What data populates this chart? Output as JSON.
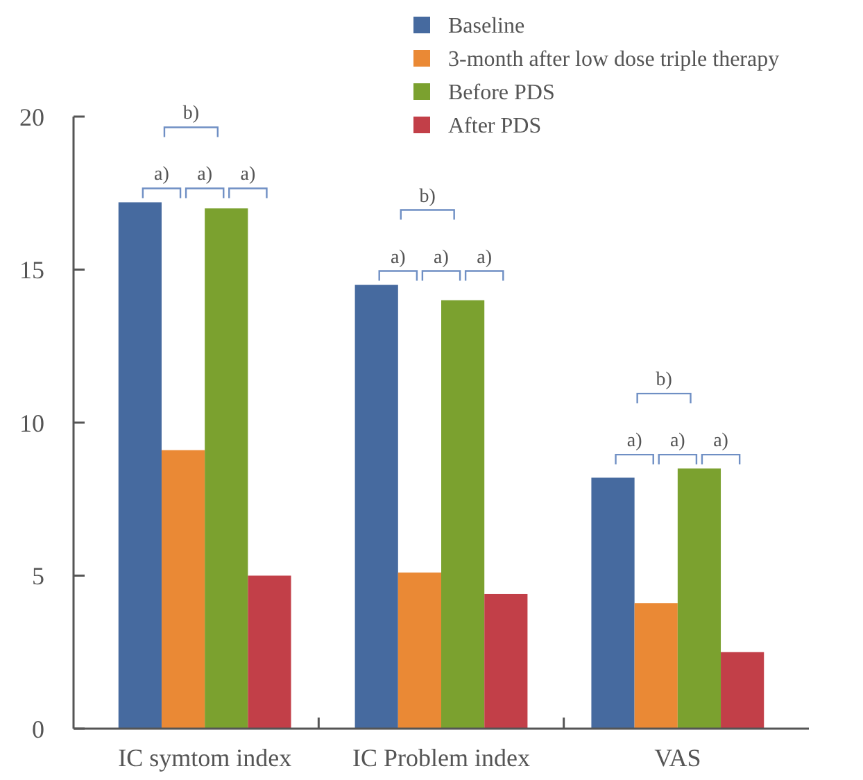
{
  "chart_data": {
    "type": "bar",
    "categories": [
      "IC symtom index",
      "IC Problem index",
      "VAS"
    ],
    "series": [
      {
        "name": "Baseline",
        "color": "#466a9f",
        "values": [
          17.2,
          14.5,
          8.2
        ]
      },
      {
        "name": "3-month after low dose triple therapy",
        "color": "#ea8935",
        "values": [
          9.1,
          5.1,
          4.1
        ]
      },
      {
        "name": "Before PDS",
        "color": "#7ba12f",
        "values": [
          17.0,
          14.0,
          8.5
        ]
      },
      {
        "name": "After PDS",
        "color": "#c23f48",
        "values": [
          5.0,
          4.4,
          2.5
        ]
      }
    ],
    "ylim": [
      0,
      20
    ],
    "yticks": [
      0,
      5,
      10,
      15,
      20
    ],
    "grid": false,
    "legend": "top right",
    "annotations": [
      "b)",
      "a)",
      "a)",
      "a)",
      "b)",
      "a)",
      "a)",
      "a)",
      "b)",
      "a)",
      "a)",
      "a)"
    ]
  }
}
